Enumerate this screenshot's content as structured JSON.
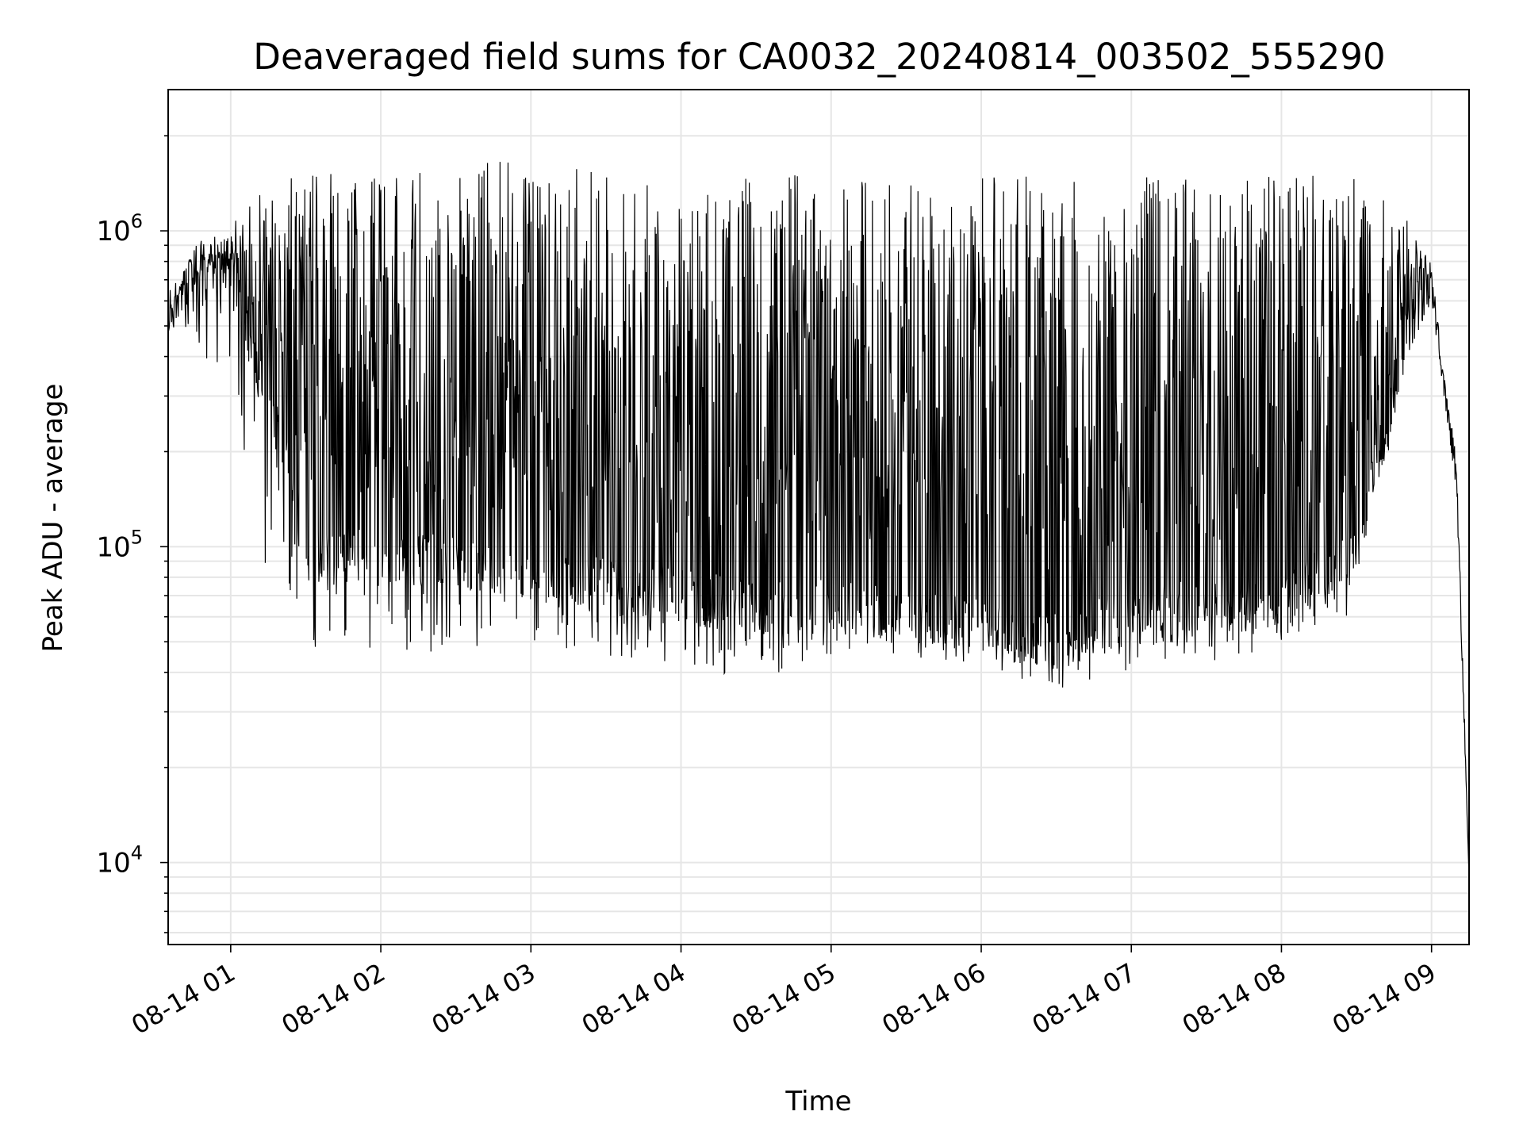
{
  "chart_data": {
    "type": "line",
    "title": "Deaveraged field sums for CA0032_20240814_003502_555290",
    "xlabel": "Time",
    "ylabel": "Peak ADU - average",
    "yscale": "log",
    "grid": true,
    "xlim": [
      "2024-08-14 00:35",
      "2024-08-14 09:15"
    ],
    "ylim": [
      5500,
      2800000
    ],
    "x_ticks": [
      {
        "value": "2024-08-14 01:00",
        "label": "08-14 01"
      },
      {
        "value": "2024-08-14 02:00",
        "label": "08-14 02"
      },
      {
        "value": "2024-08-14 03:00",
        "label": "08-14 03"
      },
      {
        "value": "2024-08-14 04:00",
        "label": "08-14 04"
      },
      {
        "value": "2024-08-14 05:00",
        "label": "08-14 05"
      },
      {
        "value": "2024-08-14 06:00",
        "label": "08-14 06"
      },
      {
        "value": "2024-08-14 07:00",
        "label": "08-14 07"
      },
      {
        "value": "2024-08-14 08:00",
        "label": "08-14 08"
      },
      {
        "value": "2024-08-14 09:00",
        "label": "08-14 09"
      }
    ],
    "y_ticks": [
      {
        "value": 10000,
        "base": "10",
        "exp": "4"
      },
      {
        "value": 100000,
        "base": "10",
        "exp": "5"
      },
      {
        "value": 1000000,
        "base": "10",
        "exp": "6"
      }
    ],
    "series_envelope": {
      "time": [
        "2024-08-14 00:35",
        "2024-08-14 00:45",
        "2024-08-14 01:00",
        "2024-08-14 01:15",
        "2024-08-14 01:30",
        "2024-08-14 02:00",
        "2024-08-14 02:30",
        "2024-08-14 03:00",
        "2024-08-14 03:30",
        "2024-08-14 04:00",
        "2024-08-14 04:30",
        "2024-08-14 05:00",
        "2024-08-14 05:30",
        "2024-08-14 06:00",
        "2024-08-14 06:30",
        "2024-08-14 07:00",
        "2024-08-14 07:30",
        "2024-08-14 08:00",
        "2024-08-14 08:30",
        "2024-08-14 08:50",
        "2024-08-14 09:00",
        "2024-08-14 09:05",
        "2024-08-14 09:10",
        "2024-08-14 09:15"
      ],
      "high": [
        550000,
        900000,
        1050000,
        1400000,
        1600000,
        1600000,
        1600000,
        1700000,
        1500000,
        1400000,
        1500000,
        1500000,
        1400000,
        1500000,
        1500000,
        1500000,
        1500000,
        1500000,
        1500000,
        1100000,
        800000,
        350000,
        200000,
        9000
      ],
      "base": [
        550000,
        700000,
        700000,
        300000,
        100000,
        90000,
        90000,
        80000,
        75000,
        70000,
        65000,
        65000,
        60000,
        55000,
        50000,
        60000,
        65000,
        65000,
        100000,
        450000,
        650000,
        300000,
        150000,
        9000
      ],
      "low": [
        480000,
        450000,
        250000,
        70000,
        45000,
        48000,
        45000,
        50000,
        45000,
        42000,
        38000,
        42000,
        45000,
        42000,
        35000,
        40000,
        42000,
        48000,
        60000,
        400000,
        600000,
        300000,
        150000,
        9000
      ]
    }
  }
}
